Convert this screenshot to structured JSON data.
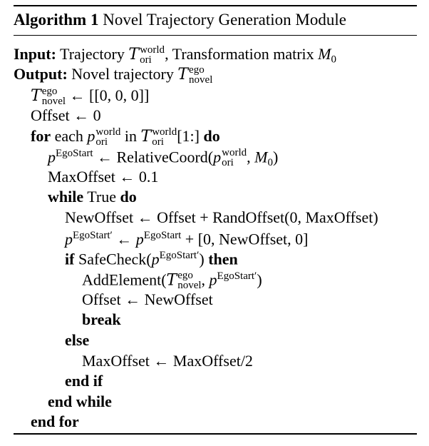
{
  "algorithm": {
    "number_label": "Algorithm 1",
    "title": "Novel Trajectory Generation Module"
  },
  "io": {
    "input_keyword": "Input:",
    "input_text_1": "Trajectory",
    "input_symbol": "T",
    "input_symbol_sup": "world",
    "input_symbol_sub": "ori",
    "input_text_2": ", Transformation matrix",
    "input_matrix": "M",
    "input_matrix_sub": "0",
    "output_keyword": "Output:",
    "output_text": "Novel trajectory",
    "output_symbol": "T",
    "output_symbol_sup": "ego",
    "output_symbol_sub": "novel"
  },
  "lines": {
    "l1_rhs": "← [[0, 0, 0]]",
    "l2": "Offset ← 0",
    "l3_kw_for": "for",
    "l3_each": "each",
    "l3_p": "p",
    "l3_p_sup": "world",
    "l3_p_sub": "ori",
    "l3_in": "in",
    "l3_T": "T",
    "l3_T_sup": "world",
    "l3_T_sub": "ori",
    "l3_slice": "[1:]",
    "l3_kw_do": "do",
    "l4_p": "p",
    "l4_p_sup": "EgoStart",
    "l4_mid": "← RelativeCoord(",
    "l4_arg_p": "p",
    "l4_arg_sup": "world",
    "l4_arg_sub": "ori",
    "l4_comma": ", ",
    "l4_M": "M",
    "l4_M_sub": "0",
    "l4_close": ")",
    "l5": "MaxOffset ← 0.1",
    "l6_kw_while": "while",
    "l6_true": "True",
    "l6_kw_do": "do",
    "l7": "NewOffset ← Offset + RandOffset(0, MaxOffset)",
    "l8_p": "p",
    "l8_p_sup": "EgoStart′",
    "l8_mid": "← ",
    "l8_p2": "p",
    "l8_p2_sup": "EgoStart",
    "l8_rest": "+ [0, NewOffset, 0]",
    "l9_kw_if": "if",
    "l9_fn": "SafeCheck(",
    "l9_p": "p",
    "l9_p_sup": "EgoStart′",
    "l9_close": ")",
    "l9_kw_then": "then",
    "l10_fn": "AddElement(",
    "l10_T": "T",
    "l10_T_sup": "ego",
    "l10_T_sub": "novel",
    "l10_comma": ", ",
    "l10_p": "p",
    "l10_p_sup": "EgoStart′",
    "l10_close": ")",
    "l11": "Offset ← NewOffset",
    "l12_kw": "break",
    "l13_kw": "else",
    "l14": "MaxOffset ← MaxOffset/2",
    "l15_kw": "end if",
    "l16_kw": "end while",
    "l17_kw": "end for"
  }
}
